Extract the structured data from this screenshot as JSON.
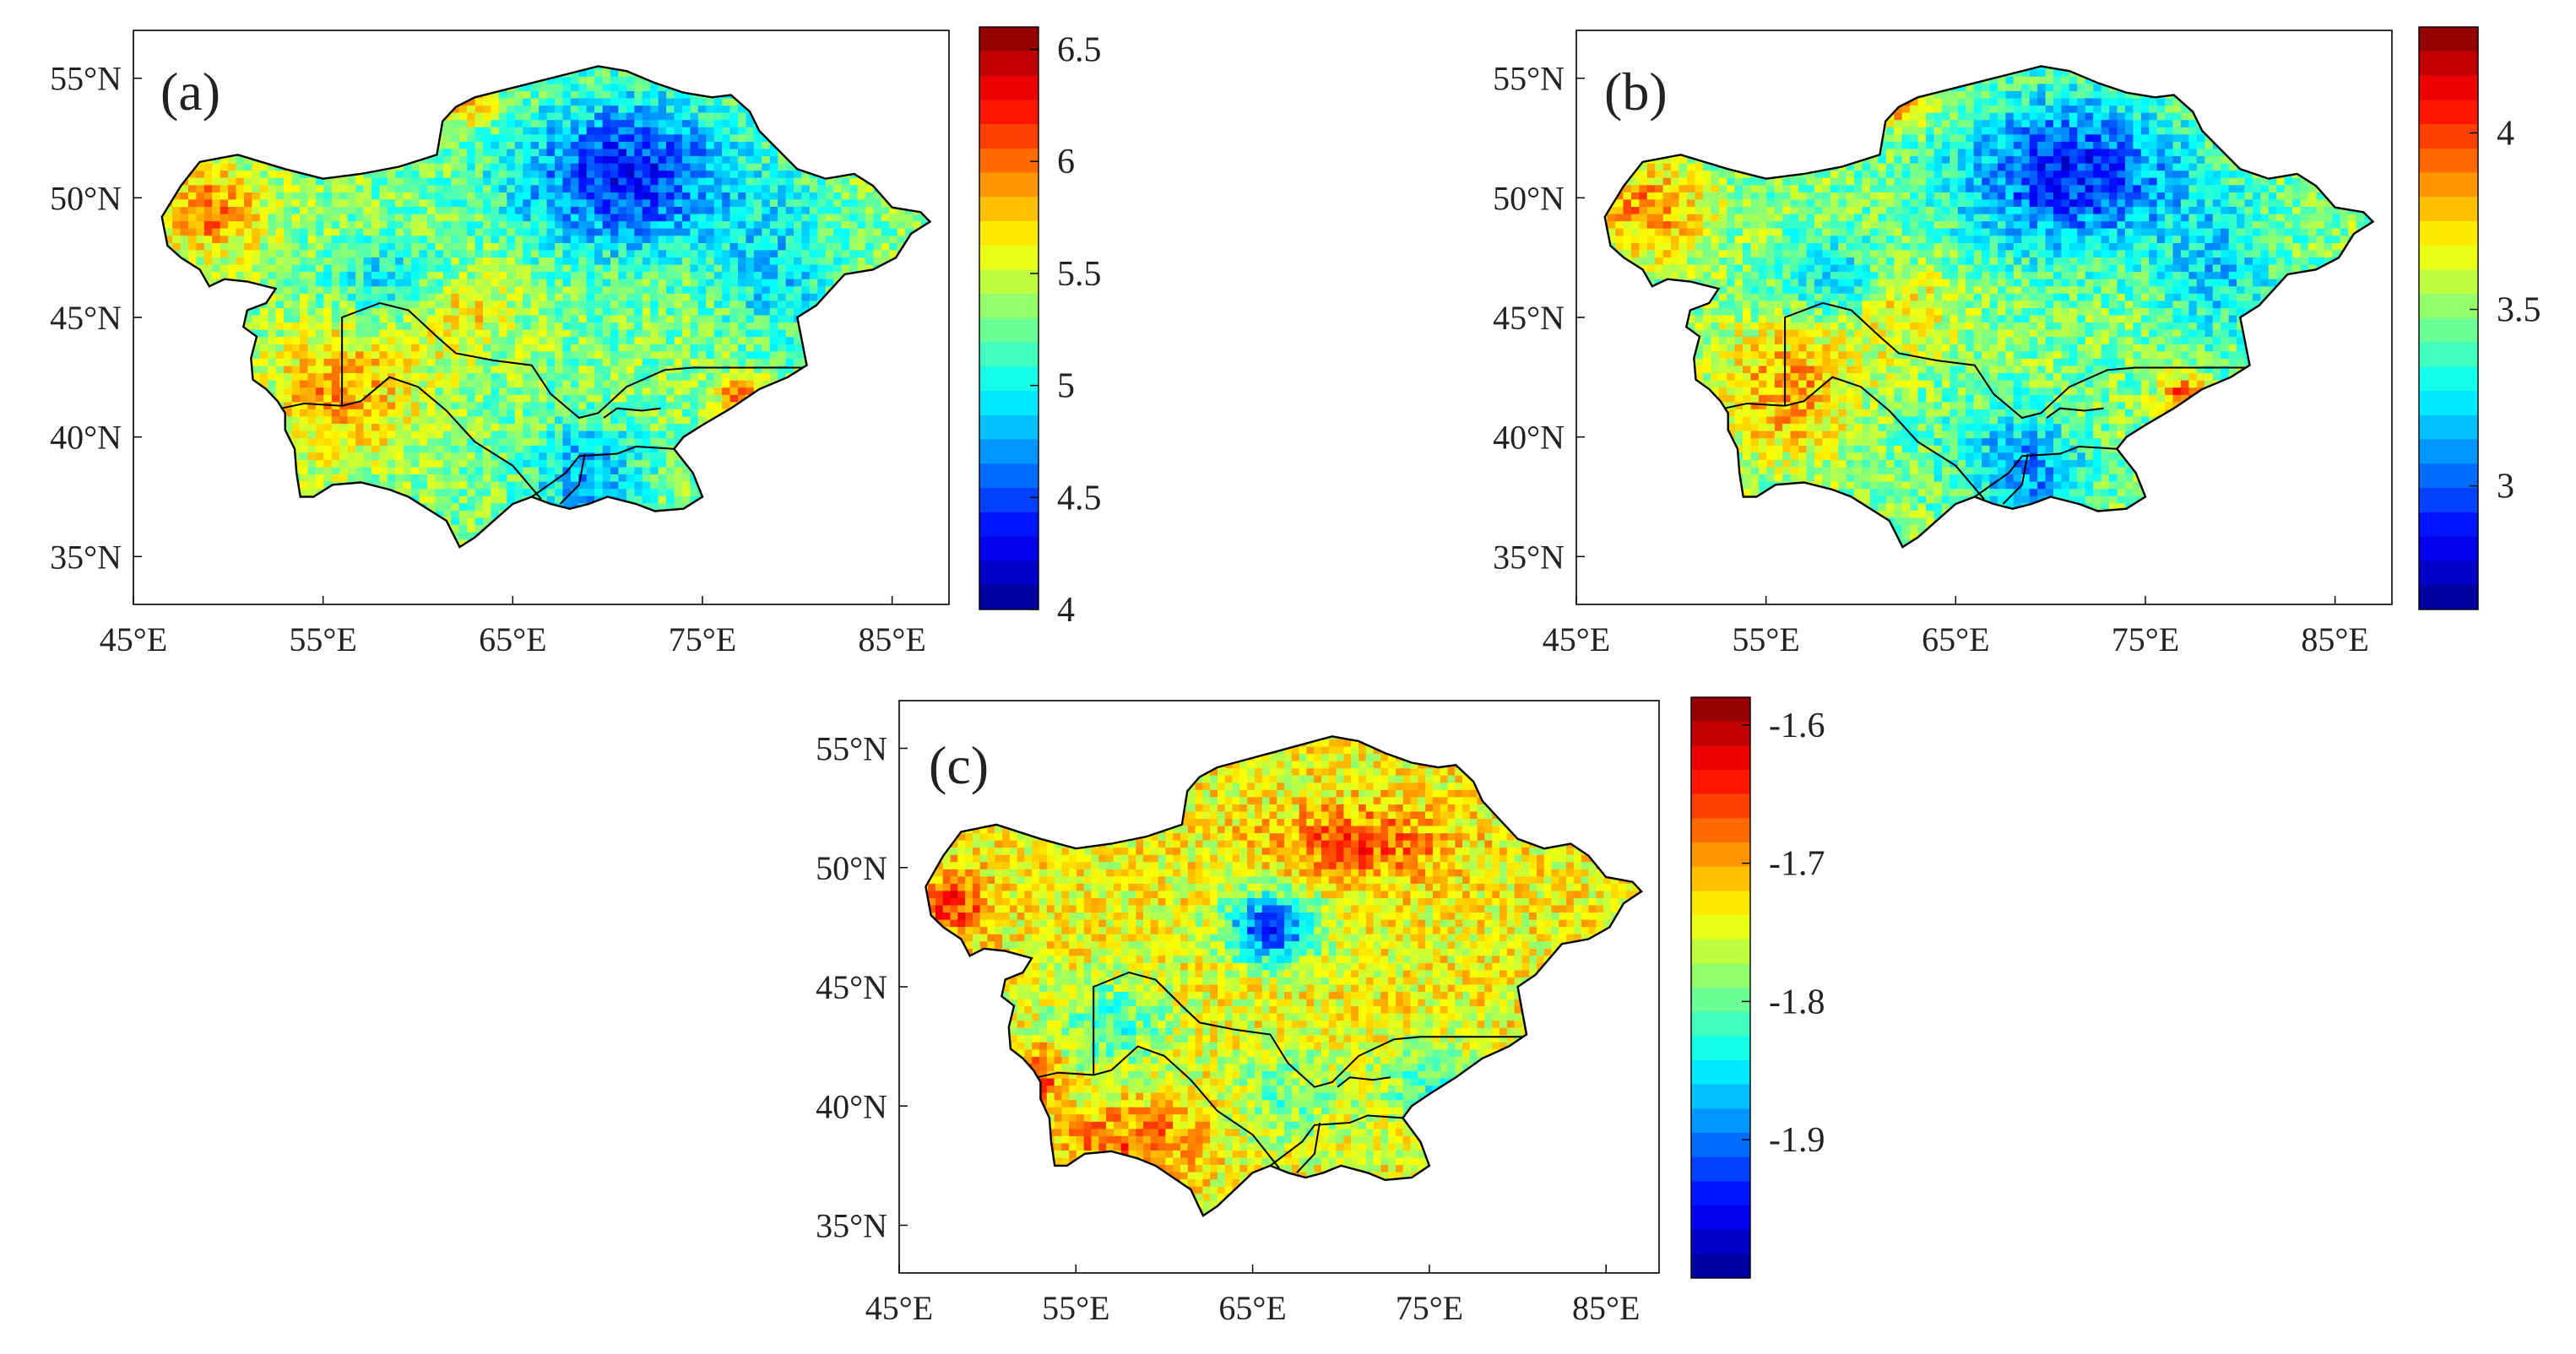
{
  "figure_title": "",
  "panels": [
    {
      "id": "a",
      "label": "(a)",
      "colorbar": {
        "min": 4.0,
        "max": 6.6,
        "ticks": [
          "4",
          "4.5",
          "5",
          "5.5",
          "6",
          "6.5"
        ],
        "tick_values": [
          4.0,
          4.5,
          5.0,
          5.5,
          6.0,
          6.5
        ]
      },
      "pattern": "a"
    },
    {
      "id": "b",
      "label": "(b)",
      "colorbar": {
        "min": 2.65,
        "max": 4.3,
        "ticks": [
          "3",
          "3.5",
          "4"
        ],
        "tick_values": [
          3.0,
          3.5,
          4.0
        ]
      },
      "pattern": "b"
    },
    {
      "id": "c",
      "label": "(c)",
      "colorbar": {
        "min": -2.0,
        "max": -1.58,
        "ticks": [
          "-1.9",
          "-1.8",
          "-1.7",
          "-1.6"
        ],
        "tick_values": [
          -1.9,
          -1.8,
          -1.7,
          -1.6
        ]
      },
      "pattern": "c"
    }
  ],
  "axes": {
    "lon_range": [
      45,
      88
    ],
    "lat_range": [
      33,
      57
    ],
    "lon_ticks": [
      "45°E",
      "55°E",
      "65°E",
      "75°E",
      "85°E"
    ],
    "lon_tick_values": [
      45,
      55,
      65,
      75,
      85
    ],
    "lat_ticks": [
      "35°N",
      "40°N",
      "45°N",
      "50°N",
      "55°N"
    ],
    "lat_tick_values": [
      35,
      40,
      45,
      50,
      55
    ]
  },
  "colors": {
    "colormap": [
      "#00008f",
      "#0000ff",
      "#0080ff",
      "#00ffff",
      "#80ff80",
      "#ffff00",
      "#ff8000",
      "#ff0000",
      "#800000"
    ],
    "border": "#000000",
    "frame": "#000000",
    "background": "#ffffff"
  },
  "region_outline": [
    [
      46.5,
      49.2
    ],
    [
      47.5,
      50.5
    ],
    [
      48.5,
      51.5
    ],
    [
      50.5,
      51.8
    ],
    [
      53,
      51.2
    ],
    [
      55,
      50.8
    ],
    [
      57,
      51
    ],
    [
      59,
      51.3
    ],
    [
      61,
      51.8
    ],
    [
      61.3,
      53.2
    ],
    [
      62,
      53.8
    ],
    [
      63,
      54.2
    ],
    [
      64.5,
      54.5
    ],
    [
      66,
      54.8
    ],
    [
      68,
      55.2
    ],
    [
      69.5,
      55.5
    ],
    [
      71,
      55.3
    ],
    [
      72.5,
      54.8
    ],
    [
      74,
      54.4
    ],
    [
      75.5,
      54.2
    ],
    [
      76.5,
      54.3
    ],
    [
      77.5,
      53.6
    ],
    [
      78,
      52.8
    ],
    [
      79,
      52
    ],
    [
      80,
      51.2
    ],
    [
      81.5,
      50.8
    ],
    [
      83,
      51
    ],
    [
      84,
      50.5
    ],
    [
      85,
      49.6
    ],
    [
      86.5,
      49.4
    ],
    [
      87,
      49
    ],
    [
      86,
      48.5
    ],
    [
      85.2,
      47.5
    ],
    [
      84,
      47
    ],
    [
      82.5,
      46.8
    ],
    [
      81,
      45.5
    ],
    [
      80,
      45
    ],
    [
      80.2,
      44.2
    ],
    [
      80.5,
      43
    ],
    [
      79.5,
      42.5
    ],
    [
      78,
      42
    ],
    [
      76.5,
      41.2
    ],
    [
      75,
      40.5
    ],
    [
      74,
      40
    ],
    [
      73.5,
      39.5
    ],
    [
      74.5,
      38.5
    ],
    [
      75,
      37.5
    ],
    [
      74,
      37
    ],
    [
      72.5,
      36.9
    ],
    [
      71.5,
      37.2
    ],
    [
      70,
      37.5
    ],
    [
      69,
      37.2
    ],
    [
      68,
      37
    ],
    [
      67,
      37.2
    ],
    [
      66,
      37.5
    ],
    [
      65,
      37.2
    ],
    [
      64,
      36.5
    ],
    [
      63,
      35.8
    ],
    [
      62.2,
      35.4
    ],
    [
      61.5,
      36.5
    ],
    [
      60.5,
      37
    ],
    [
      59.5,
      37.5
    ],
    [
      58.5,
      37.8
    ],
    [
      57,
      38.1
    ],
    [
      55.5,
      38
    ],
    [
      54.5,
      37.5
    ],
    [
      53.8,
      37.5
    ],
    [
      53.6,
      38.5
    ],
    [
      53.5,
      39.5
    ],
    [
      53,
      40.3
    ],
    [
      53,
      41
    ],
    [
      52.6,
      41.5
    ],
    [
      52,
      42
    ],
    [
      51.3,
      42.4
    ],
    [
      51.2,
      43.3
    ],
    [
      51.5,
      44.2
    ],
    [
      50.8,
      44.6
    ],
    [
      51,
      45.3
    ],
    [
      52,
      45.6
    ],
    [
      52.5,
      46.2
    ],
    [
      51,
      46.5
    ],
    [
      49.8,
      46.6
    ],
    [
      49,
      46.3
    ],
    [
      48.5,
      47
    ],
    [
      47.5,
      47.5
    ],
    [
      46.8,
      48
    ],
    [
      46.5,
      49.2
    ]
  ],
  "internal_borders": [
    [
      [
        56,
        41.3
      ],
      [
        56,
        45
      ],
      [
        58,
        45.6
      ],
      [
        59.5,
        45.3
      ],
      [
        61,
        44.2
      ],
      [
        62,
        43.5
      ],
      [
        64,
        43.2
      ],
      [
        66,
        43
      ],
      [
        67,
        41.8
      ],
      [
        68.5,
        40.8
      ],
      [
        69.5,
        41
      ],
      [
        71,
        42.1
      ],
      [
        73,
        42.8
      ],
      [
        74.5,
        42.9
      ],
      [
        76,
        42.9
      ],
      [
        78.5,
        42.9
      ],
      [
        80.3,
        42.9
      ]
    ],
    [
      [
        52.8,
        41.2
      ],
      [
        54,
        41.4
      ],
      [
        56,
        41.3
      ],
      [
        57,
        41.5
      ],
      [
        58.5,
        42.5
      ],
      [
        60,
        42.1
      ],
      [
        61.5,
        41.1
      ],
      [
        63,
        39.8
      ],
      [
        65,
        38.8
      ],
      [
        66.5,
        37.4
      ]
    ],
    [
      [
        66,
        37.5
      ],
      [
        67.8,
        38.5
      ],
      [
        68.5,
        39.2
      ],
      [
        70.5,
        39.3
      ],
      [
        71.5,
        39.6
      ],
      [
        73.5,
        39.5
      ]
    ],
    [
      [
        67.5,
        37.2
      ],
      [
        68.5,
        38
      ],
      [
        68.8,
        39.3
      ]
    ],
    [
      [
        69.8,
        40.8
      ],
      [
        70.5,
        41.2
      ],
      [
        71.8,
        41.1
      ],
      [
        72.8,
        41.2
      ]
    ]
  ]
}
